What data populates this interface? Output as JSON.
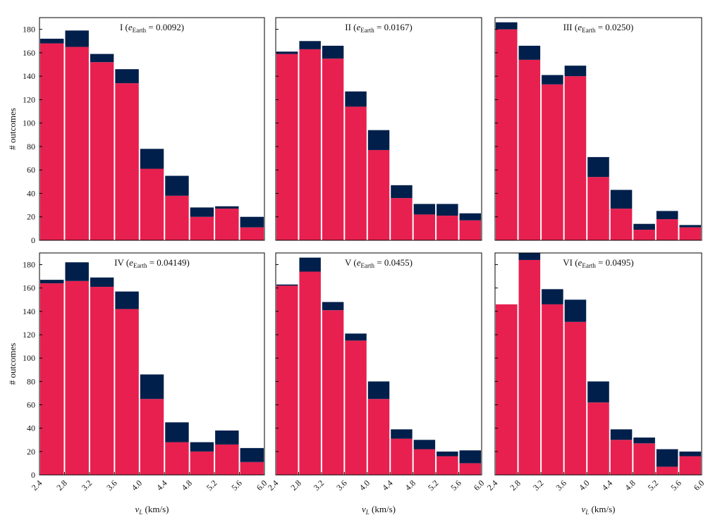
{
  "chart_data": [
    {
      "type": "histogram",
      "title": [
        "I (",
        "e",
        "Earth",
        " = 0.0092)"
      ],
      "ylabel": "# outcomes",
      "bins": [
        2.4,
        2.8,
        3.2,
        3.6,
        4.0,
        4.4,
        4.8,
        5.2,
        5.6,
        6.0
      ],
      "xlim": [
        2.4,
        6.0
      ],
      "ylim": [
        0,
        190
      ],
      "yticks": [
        0,
        20,
        40,
        60,
        80,
        100,
        120,
        140,
        160,
        180
      ],
      "series": [
        {
          "color": "#e8204f",
          "values": [
            168,
            165,
            152,
            134,
            61,
            38,
            20,
            27,
            11
          ]
        },
        {
          "color": "#011f4b",
          "values": [
            4,
            14,
            7,
            12,
            17,
            17,
            8,
            2,
            9
          ]
        }
      ]
    },
    {
      "type": "histogram",
      "title": [
        "II (",
        "e",
        "Earth",
        " = 0.0167)"
      ],
      "bins": [
        2.4,
        2.8,
        3.2,
        3.6,
        4.0,
        4.4,
        4.8,
        5.2,
        5.6,
        6.0
      ],
      "xlim": [
        2.4,
        6.0
      ],
      "ylim": [
        0,
        190
      ],
      "yticks": [
        0,
        20,
        40,
        60,
        80,
        100,
        120,
        140,
        160,
        180
      ],
      "series": [
        {
          "color": "#e8204f",
          "values": [
            159,
            163,
            155,
            114,
            77,
            36,
            22,
            21,
            17
          ]
        },
        {
          "color": "#011f4b",
          "values": [
            2,
            7,
            11,
            13,
            17,
            11,
            9,
            10,
            6
          ]
        }
      ]
    },
    {
      "type": "histogram",
      "title": [
        "III (",
        "e",
        "Earth",
        " = 0.0250)"
      ],
      "bins": [
        2.4,
        2.8,
        3.2,
        3.6,
        4.0,
        4.4,
        4.8,
        5.2,
        5.6,
        6.0
      ],
      "xlim": [
        2.4,
        6.0
      ],
      "ylim": [
        0,
        190
      ],
      "yticks": [
        0,
        20,
        40,
        60,
        80,
        100,
        120,
        140,
        160,
        180
      ],
      "series": [
        {
          "color": "#e8204f",
          "values": [
            180,
            154,
            133,
            140,
            54,
            27,
            9,
            18,
            11
          ]
        },
        {
          "color": "#011f4b",
          "values": [
            6,
            12,
            8,
            9,
            17,
            16,
            5,
            7,
            2
          ]
        }
      ]
    },
    {
      "type": "histogram",
      "title": [
        "IV (",
        "e",
        "Earth",
        " = 0.04149)"
      ],
      "ylabel": "# outcomes",
      "xlabel": [
        "v",
        "L",
        " (km/s)"
      ],
      "bins": [
        2.4,
        2.8,
        3.2,
        3.6,
        4.0,
        4.4,
        4.8,
        5.2,
        5.6,
        6.0
      ],
      "xlim": [
        2.4,
        6.0
      ],
      "ylim": [
        0,
        190
      ],
      "xticks": [
        2.4,
        2.8,
        3.2,
        3.6,
        {
          "value": 4,
          "label": "4.0"
        },
        4.4,
        4.8,
        5.2,
        5.6,
        {
          "value": 6,
          "label": "6.0"
        }
      ],
      "yticks": [
        0,
        20,
        40,
        60,
        80,
        100,
        120,
        140,
        160,
        180
      ],
      "series": [
        {
          "color": "#e8204f",
          "values": [
            164,
            166,
            161,
            142,
            65,
            28,
            20,
            26,
            11
          ]
        },
        {
          "color": "#011f4b",
          "values": [
            3,
            16,
            8,
            15,
            21,
            17,
            8,
            12,
            12
          ]
        }
      ]
    },
    {
      "type": "histogram",
      "title": [
        "V (",
        "e",
        "Earth",
        " = 0.0455)"
      ],
      "xlabel": [
        "v",
        "L",
        " (km/s)"
      ],
      "bins": [
        2.4,
        2.8,
        3.2,
        3.6,
        4.0,
        4.4,
        4.8,
        5.2,
        5.6,
        6.0
      ],
      "xlim": [
        2.4,
        6.0
      ],
      "ylim": [
        0,
        190
      ],
      "xticks": [
        2.4,
        2.8,
        3.2,
        3.6,
        {
          "value": 4,
          "label": "4.0"
        },
        4.4,
        4.8,
        5.2,
        5.6,
        {
          "value": 6,
          "label": "6.0"
        }
      ],
      "yticks": [
        0,
        20,
        40,
        60,
        80,
        100,
        120,
        140,
        160,
        180
      ],
      "series": [
        {
          "color": "#e8204f",
          "values": [
            162,
            174,
            141,
            115,
            65,
            31,
            22,
            16,
            10
          ]
        },
        {
          "color": "#011f4b",
          "values": [
            1,
            12,
            7,
            6,
            15,
            8,
            8,
            4,
            11
          ]
        }
      ]
    },
    {
      "type": "histogram",
      "title": [
        "VI (",
        "e",
        "Earth",
        " = 0.0495)"
      ],
      "xlabel": [
        "v",
        "L",
        " (km/s)"
      ],
      "bins": [
        2.4,
        2.8,
        3.2,
        3.6,
        4.0,
        4.4,
        4.8,
        5.2,
        5.6,
        6.0
      ],
      "xlim": [
        2.4,
        6.0
      ],
      "ylim": [
        0,
        190
      ],
      "xticks": [
        2.4,
        2.8,
        3.2,
        3.6,
        {
          "value": 4,
          "label": "4.0"
        },
        4.4,
        4.8,
        5.2,
        5.6,
        {
          "value": 6,
          "label": "6.0"
        }
      ],
      "yticks": [
        0,
        20,
        40,
        60,
        80,
        100,
        120,
        140,
        160,
        180
      ],
      "series": [
        {
          "color": "#e8204f",
          "values": [
            146,
            184,
            146,
            131,
            62,
            30,
            27,
            7,
            16
          ]
        },
        {
          "color": "#011f4b",
          "values": [
            0,
            7,
            13,
            19,
            18,
            9,
            5,
            15,
            4
          ]
        }
      ]
    }
  ]
}
